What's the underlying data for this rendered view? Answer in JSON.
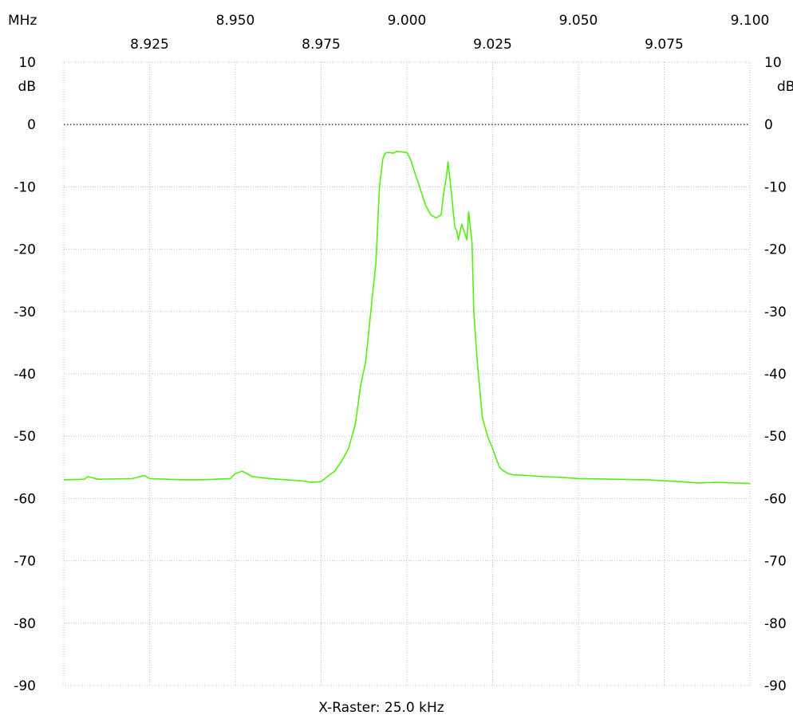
{
  "chart_data": {
    "type": "line",
    "x_unit_label": "MHz",
    "y_unit_label": "dB",
    "xlim": [
      8.9,
      9.1
    ],
    "ylim": [
      -90,
      10
    ],
    "x_ticks_top": [
      "8.950",
      "9.000",
      "9.050",
      "9.100"
    ],
    "x_ticks_bottom": [
      "8.925",
      "8.975",
      "9.025",
      "9.075"
    ],
    "x_tick_top_values": [
      8.95,
      9.0,
      9.05,
      9.1
    ],
    "x_tick_bottom_values": [
      8.925,
      8.975,
      9.025,
      9.075
    ],
    "y_ticks": [
      10,
      0,
      -10,
      -20,
      -30,
      -40,
      -50,
      -60,
      -70,
      -80,
      -90
    ],
    "y_tick_labels": [
      "10",
      "0",
      "-10",
      "-20",
      "-30",
      "-40",
      "-50",
      "-60",
      "-70",
      "-80",
      "-90"
    ],
    "reference_line_y": 0,
    "x_raster_label": "X-Raster: 25.0 kHz",
    "grid": true,
    "series": [
      {
        "color": "#55ee11",
        "x": [
          8.9,
          8.906,
          8.907,
          8.91,
          8.92,
          8.9235,
          8.925,
          8.935,
          8.94,
          8.9485,
          8.95,
          8.952,
          8.955,
          8.96,
          8.965,
          8.97,
          8.972,
          8.975,
          8.977,
          8.979,
          8.981,
          8.983,
          8.985,
          8.9865,
          8.988,
          8.9895,
          8.991,
          8.992,
          8.993,
          8.9935,
          8.994,
          8.995,
          8.996,
          8.997,
          9.0,
          9.0005,
          9.001,
          9.0025,
          9.004,
          9.0055,
          9.007,
          9.0085,
          9.01,
          9.0105,
          9.011,
          9.0115,
          9.012,
          9.013,
          9.0135,
          9.014,
          9.0145,
          9.015,
          9.016,
          9.0175,
          9.018,
          9.019,
          9.0195,
          9.0205,
          9.022,
          9.0235,
          9.025,
          9.026,
          9.027,
          9.028,
          9.0295,
          9.031,
          9.035,
          9.04,
          9.045,
          9.05,
          9.06,
          9.07,
          9.08,
          9.085,
          9.09,
          9.1
        ],
        "y": [
          -57.0,
          -56.9,
          -56.5,
          -56.9,
          -56.8,
          -56.3,
          -56.8,
          -57.0,
          -57.0,
          -56.8,
          -56.0,
          -55.6,
          -56.5,
          -56.8,
          -57.0,
          -57.2,
          -57.4,
          -57.3,
          -56.4,
          -55.6,
          -54.0,
          -52.0,
          -48.0,
          -42.0,
          -38.0,
          -30.0,
          -22.0,
          -10.0,
          -5.5,
          -4.8,
          -4.5,
          -4.5,
          -4.6,
          -4.3,
          -4.5,
          -5.0,
          -5.5,
          -8.0,
          -10.5,
          -13.0,
          -14.5,
          -15.0,
          -14.5,
          -12.0,
          -10.0,
          -8.5,
          -6.0,
          -11.0,
          -14.0,
          -16.5,
          -17.0,
          -18.5,
          -16.0,
          -18.5,
          -14.0,
          -19.0,
          -30.0,
          -38.0,
          -47.0,
          -50.0,
          -52.0,
          -53.5,
          -55.0,
          -55.5,
          -56.0,
          -56.2,
          -56.3,
          -56.5,
          -56.6,
          -56.8,
          -56.9,
          -57.0,
          -57.3,
          -57.5,
          -57.4,
          -57.6
        ]
      }
    ]
  }
}
